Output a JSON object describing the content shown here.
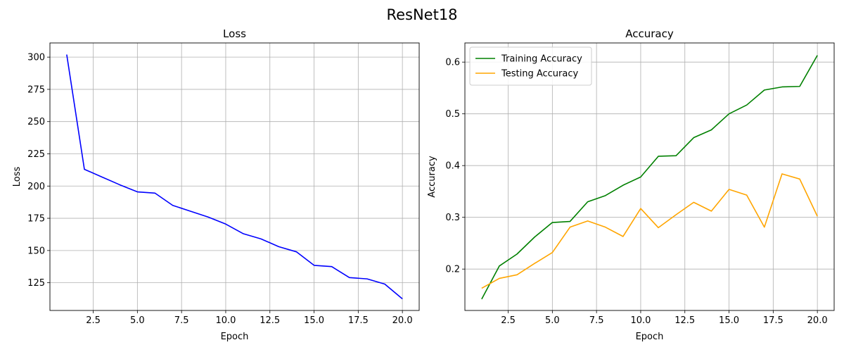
{
  "suptitle": "ResNet18",
  "chart_data": [
    {
      "type": "line",
      "title": "Loss",
      "xlabel": "Epoch",
      "ylabel": "Loss",
      "xlim": [
        0.05,
        20.95
      ],
      "ylim": [
        103.5,
        311.0
      ],
      "xticks": [
        2.5,
        5.0,
        7.5,
        10.0,
        12.5,
        15.0,
        17.5,
        20.0
      ],
      "xtick_labels": [
        "2.5",
        "5.0",
        "7.5",
        "10.0",
        "12.5",
        "15.0",
        "17.5",
        "20.0"
      ],
      "yticks": [
        125,
        150,
        175,
        200,
        225,
        250,
        275,
        300
      ],
      "ytick_labels": [
        "125",
        "150",
        "175",
        "200",
        "225",
        "250",
        "275",
        "300"
      ],
      "grid": true,
      "legend": null,
      "x": [
        1,
        2,
        3,
        4,
        5,
        6,
        7,
        8,
        9,
        10,
        11,
        12,
        13,
        14,
        15,
        16,
        17,
        18,
        19,
        20
      ],
      "series": [
        {
          "color": "#0000ff",
          "values": [
            302,
            213,
            207,
            201,
            195.5,
            194.5,
            185,
            180.5,
            176,
            170.5,
            163,
            159,
            153,
            149,
            138.5,
            137.5,
            129,
            128,
            124,
            112.5
          ]
        }
      ]
    },
    {
      "type": "line",
      "title": "Accuracy",
      "xlabel": "Epoch",
      "ylabel": "Accuracy",
      "xlim": [
        0.05,
        20.95
      ],
      "ylim": [
        0.12,
        0.637
      ],
      "xticks": [
        2.5,
        5.0,
        7.5,
        10.0,
        12.5,
        15.0,
        17.5,
        20.0
      ],
      "xtick_labels": [
        "2.5",
        "5.0",
        "7.5",
        "10.0",
        "12.5",
        "15.0",
        "17.5",
        "20.0"
      ],
      "yticks": [
        0.2,
        0.3,
        0.4,
        0.5,
        0.6
      ],
      "ytick_labels": [
        "0.2",
        "0.3",
        "0.4",
        "0.5",
        "0.6"
      ],
      "grid": true,
      "legend": "top-left",
      "x": [
        1,
        2,
        3,
        4,
        5,
        6,
        7,
        8,
        9,
        10,
        11,
        12,
        13,
        14,
        15,
        16,
        17,
        18,
        19,
        20
      ],
      "series": [
        {
          "name": "Training Accuracy",
          "color": "#008000",
          "values": [
            0.142,
            0.206,
            0.229,
            0.262,
            0.29,
            0.292,
            0.33,
            0.342,
            0.362,
            0.378,
            0.418,
            0.419,
            0.454,
            0.469,
            0.5,
            0.517,
            0.546,
            0.552,
            0.553,
            0.613
          ]
        },
        {
          "name": "Testing Accuracy",
          "color": "#ffa500",
          "values": [
            0.163,
            0.182,
            0.189,
            0.211,
            0.232,
            0.281,
            0.293,
            0.281,
            0.263,
            0.317,
            0.28,
            0.305,
            0.329,
            0.312,
            0.354,
            0.343,
            0.281,
            0.384,
            0.374,
            0.302
          ]
        }
      ]
    }
  ]
}
